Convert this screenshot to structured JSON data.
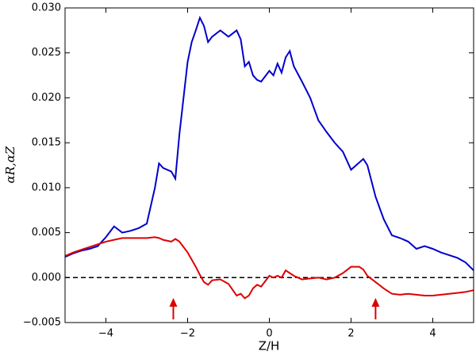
{
  "chart_data": {
    "type": "line",
    "xlabel": "Z/H",
    "ylabel": "αR,αZ",
    "xlim": [
      -5,
      5
    ],
    "ylim": [
      -0.005,
      0.03
    ],
    "xticks": [
      {
        "value": -4,
        "label": "−4"
      },
      {
        "value": -2,
        "label": "−2"
      },
      0,
      2,
      4
    ],
    "yticks": [
      {
        "value": -0.005,
        "label": "−0.005"
      },
      {
        "value": 0,
        "label": "0.000"
      },
      {
        "value": 0.005,
        "label": "0.005"
      },
      {
        "value": 0.01,
        "label": "0.010"
      },
      {
        "value": 0.015,
        "label": "0.015"
      },
      {
        "value": 0.02,
        "label": "0.020"
      },
      {
        "value": 0.025,
        "label": "0.025"
      },
      {
        "value": 0.03,
        "label": "0.030"
      }
    ],
    "x": [
      -5,
      -4.8,
      -4.6,
      -4.4,
      -4.2,
      -4,
      -3.8,
      -3.6,
      -3.4,
      -3.2,
      -3,
      -2.8,
      -2.7,
      -2.6,
      -2.4,
      -2.3,
      -2.2,
      -2,
      -1.9,
      -1.8,
      -1.7,
      -1.6,
      -1.5,
      -1.4,
      -1.2,
      -1,
      -0.8,
      -0.7,
      -0.6,
      -0.5,
      -0.4,
      -0.3,
      -0.2,
      0,
      0.1,
      0.2,
      0.3,
      0.4,
      0.5,
      0.6,
      0.8,
      1,
      1.2,
      1.4,
      1.6,
      1.8,
      2,
      2.2,
      2.3,
      2.4,
      2.6,
      2.8,
      3,
      3.2,
      3.4,
      3.6,
      3.8,
      4,
      4.2,
      4.4,
      4.6,
      4.8,
      5
    ],
    "series": [
      {
        "color": "#0000cc",
        "values": [
          0.0023,
          0.0027,
          0.003,
          0.0032,
          0.0035,
          0.0045,
          0.0057,
          0.005,
          0.0052,
          0.0055,
          0.006,
          0.01,
          0.0127,
          0.0122,
          0.0118,
          0.011,
          0.016,
          0.024,
          0.0262,
          0.0275,
          0.0289,
          0.028,
          0.0262,
          0.0268,
          0.0275,
          0.0268,
          0.0275,
          0.0265,
          0.0235,
          0.024,
          0.0225,
          0.022,
          0.0218,
          0.023,
          0.0225,
          0.0238,
          0.0228,
          0.0245,
          0.0252,
          0.0235,
          0.0218,
          0.02,
          0.0175,
          0.0162,
          0.015,
          0.014,
          0.012,
          0.0128,
          0.0132,
          0.0125,
          0.009,
          0.0065,
          0.0047,
          0.0044,
          0.004,
          0.0032,
          0.0035,
          0.0032,
          0.0028,
          0.0025,
          0.0022,
          0.0017,
          0.0008
        ]
      },
      {
        "color": "#dd0000",
        "values": [
          0.0024,
          0.0028,
          0.0031,
          0.0034,
          0.0037,
          0.004,
          0.0042,
          0.0044,
          0.0044,
          0.0044,
          0.0044,
          0.0045,
          0.0044,
          0.0042,
          0.004,
          0.0043,
          0.004,
          0.0028,
          0.002,
          0.0012,
          0.0003,
          -0.0005,
          -0.0008,
          -0.0003,
          -0.0002,
          -0.0007,
          -0.002,
          -0.0018,
          -0.0023,
          -0.002,
          -0.0012,
          -0.0008,
          -0.001,
          0.0002,
          0,
          0.0002,
          0,
          0.0008,
          0.0005,
          0.0002,
          -0.0002,
          -0.0001,
          0,
          -0.0002,
          0,
          0.0005,
          0.0012,
          0.0012,
          0.0009,
          0.0002,
          -0.0005,
          -0.0012,
          -0.0018,
          -0.0019,
          -0.0018,
          -0.0019,
          -0.002,
          -0.002,
          -0.0019,
          -0.0018,
          -0.0017,
          -0.0016,
          -0.0014
        ]
      }
    ],
    "hline": 0,
    "hline_color": "#000000",
    "arrows_x": [
      -2.35,
      2.6
    ],
    "arrow_color": "#dd0000"
  }
}
